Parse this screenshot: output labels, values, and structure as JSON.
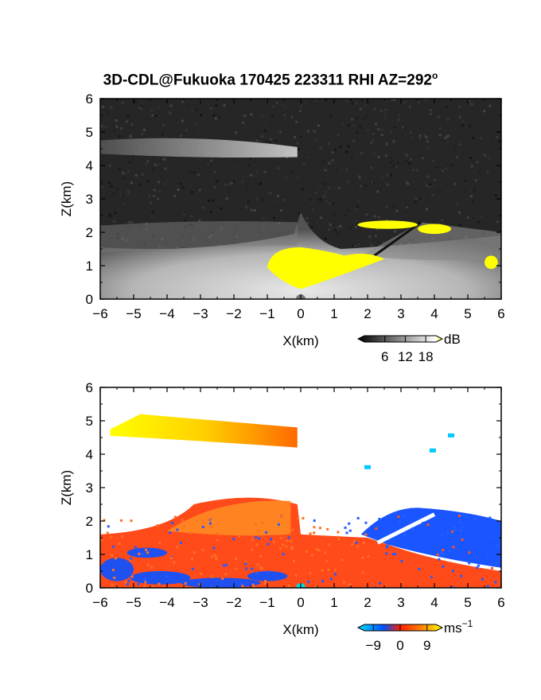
{
  "title": "3D-CDL@Fukuoka 170425 223311 RHI AZ=292",
  "title_degree": "o",
  "chart_data": [
    {
      "type": "heatmap",
      "name": "backscatter",
      "xlabel": "X(km)",
      "ylabel": "Z(km)",
      "xlim": [
        -6,
        6
      ],
      "ylim": [
        0,
        6
      ],
      "xticks": [
        "-6",
        "-5",
        "-4",
        "-3",
        "-2",
        "-1",
        "0",
        "1",
        "2",
        "3",
        "4",
        "5",
        "6"
      ],
      "yticks": [
        "0",
        "1",
        "2",
        "3",
        "4",
        "5",
        "6"
      ],
      "colorbar": {
        "unit": "dB",
        "ticks": [
          "6",
          "12",
          "18"
        ],
        "tick_values": [
          6,
          12,
          18
        ],
        "range": [
          0,
          21
        ],
        "colors": [
          "#000000",
          "#ffffff",
          "#ffff00"
        ]
      },
      "background_color": "#262626",
      "features": [
        {
          "kind": "layer",
          "x": [
            -6,
            -0.1
          ],
          "z_top": 4.9,
          "z_bottom": 4.25,
          "level": 10
        },
        {
          "kind": "boundary-layer",
          "x": [
            -6,
            6
          ],
          "z_top": 1.5,
          "level": 9
        },
        {
          "kind": "saturated",
          "color": "#ffff00",
          "regions": [
            {
              "x": [
                -1,
                2.5
              ],
              "z": [
                0.25,
                1.55
              ]
            },
            {
              "x": [
                1.7,
                3.5
              ],
              "z": [
                2.1,
                2.35
              ]
            },
            {
              "x": [
                3.5,
                4.5
              ],
              "z": [
                1.95,
                2.25
              ]
            },
            {
              "x": [
                5.5,
                5.9
              ],
              "z": [
                0.9,
                1.3
              ]
            }
          ]
        }
      ]
    },
    {
      "type": "heatmap",
      "name": "doppler-velocity",
      "xlabel": "X(km)",
      "ylabel": "Z(km)",
      "xlim": [
        -6,
        6
      ],
      "ylim": [
        0,
        6
      ],
      "xticks": [
        "-6",
        "-5",
        "-4",
        "-3",
        "-2",
        "-1",
        "0",
        "1",
        "2",
        "3",
        "4",
        "5",
        "6"
      ],
      "yticks": [
        "0",
        "1",
        "2",
        "3",
        "4",
        "5",
        "6"
      ],
      "colorbar": {
        "unit": "ms",
        "unit_superscript": "−1",
        "ticks": [
          "−9",
          "0",
          "9"
        ],
        "tick_values": [
          -9,
          0,
          9
        ],
        "range": [
          -12,
          12
        ],
        "colors": [
          "#00e0ff",
          "#0050ff",
          "#ff2000",
          "#ff7000",
          "#ffff00"
        ]
      },
      "features": [
        {
          "kind": "layer",
          "x": [
            -5.7,
            -0.1
          ],
          "z_top": 5.2,
          "z_bottom": 4.2,
          "velocity": 8
        },
        {
          "kind": "positive-region",
          "x": [
            -6,
            2.5
          ],
          "z": [
            0,
            2.8
          ],
          "velocity": 4
        },
        {
          "kind": "negative-region",
          "x": [
            1.8,
            6
          ],
          "z": [
            0,
            2.5
          ],
          "velocity": -7
        },
        {
          "kind": "negative-patches",
          "x": [
            -5.5,
            -0.5
          ],
          "z": [
            0,
            1.2
          ],
          "velocity": -8
        },
        {
          "kind": "small-negative",
          "points": [
            [
              4.5,
              4.55
            ],
            [
              3.95,
              4.1
            ],
            [
              2.0,
              3.6
            ]
          ],
          "velocity": -12
        }
      ]
    }
  ]
}
